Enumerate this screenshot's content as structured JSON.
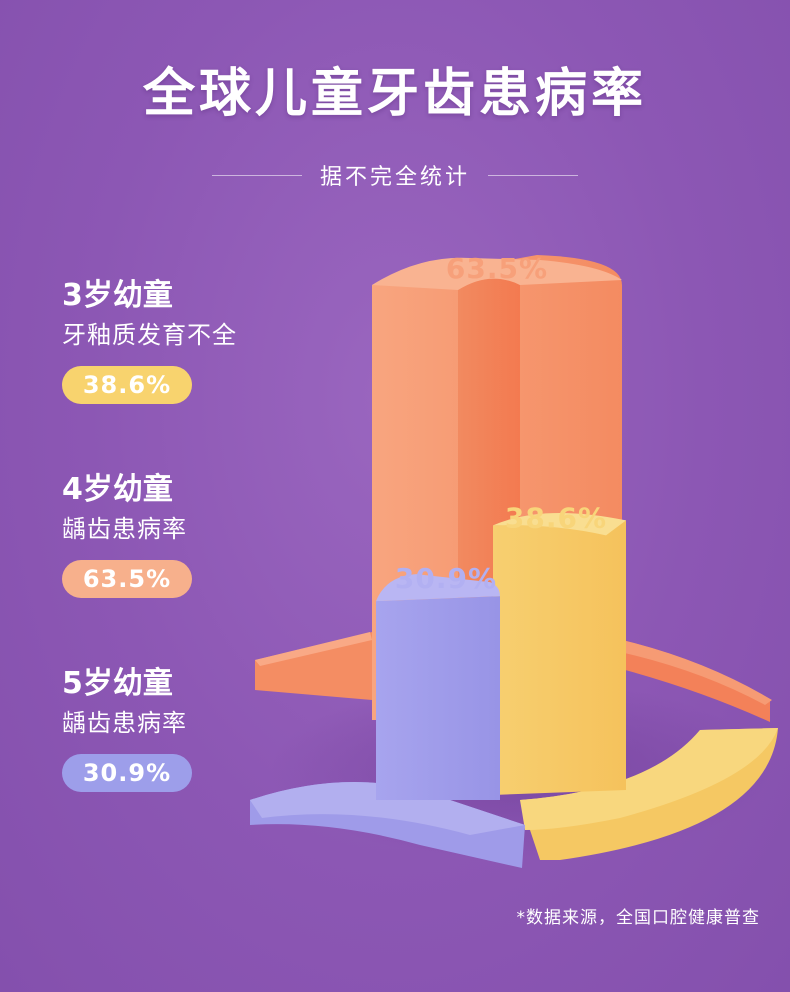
{
  "title": "全球儿童牙齿患病率",
  "subtitle": "据不完全统计",
  "groups": [
    {
      "age": "3岁幼童",
      "desc": "牙釉质发育不全",
      "value_label": "38.6%",
      "color": "#f8d36e"
    },
    {
      "age": "4岁幼童",
      "desc": "龋齿患病率",
      "value_label": "63.5%",
      "color": "#f7b08c"
    },
    {
      "age": "5岁幼童",
      "desc": "龋齿患病率",
      "value_label": "30.9%",
      "color": "#9d9eea"
    }
  ],
  "source_note": "*数据来源，全国口腔健康普查",
  "chart_data": {
    "type": "bar",
    "categories": [
      "3岁幼童",
      "4岁幼童",
      "5岁幼童"
    ],
    "values": [
      38.6,
      63.5,
      30.9
    ],
    "value_labels": [
      "38.6%",
      "63.5%",
      "30.9%"
    ],
    "colors": {
      "3岁幼童": "#f8d36e",
      "4岁幼童": "#f59470",
      "5岁幼童": "#a9a6ee"
    },
    "title": "全球儿童牙齿患病率",
    "ylim": [
      0,
      100
    ]
  }
}
